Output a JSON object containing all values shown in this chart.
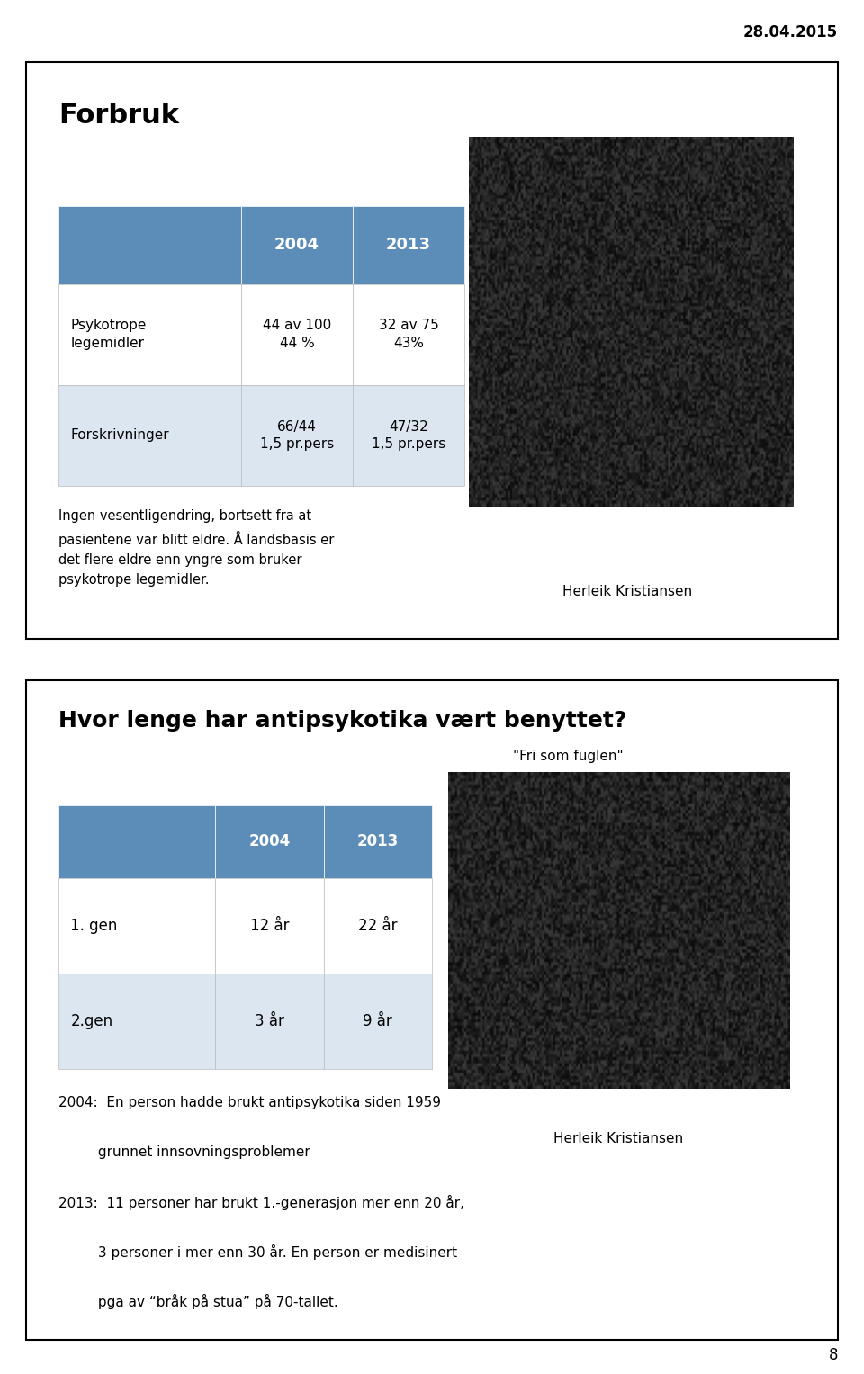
{
  "date_label": "28.04.2015",
  "page_number": "8",
  "bg_color": "#FFFFFF",
  "slide1": {
    "title": "Forbruk",
    "table_header": [
      "",
      "2004",
      "2013"
    ],
    "table_rows": [
      [
        "Psykotrope\nlegemidler",
        "44 av 100\n44 %",
        "32 av 75\n43%"
      ],
      [
        "Forskrivninger",
        "66/44\n1,5 pr.pers",
        "47/32\n1,5 pr.pers"
      ]
    ],
    "header_bg": "#5B8DB8",
    "header_fg": "#FFFFFF",
    "row1_bg": "#FFFFFF",
    "row2_bg": "#DCE6F1",
    "body_text": "Ingen vesentligendring, bortsett fra at\npasientene var blitt eldre. Å landsbasis er\ndet flere eldre enn yngre som bruker\npsykotrope legemidler.",
    "caption": "Herleik Kristiansen"
  },
  "slide2": {
    "title": "Hvor lenge har antipsykotika vært benyttet?",
    "table_header": [
      "",
      "2004",
      "2013"
    ],
    "table_rows": [
      [
        "1. gen",
        "12 år",
        "22 år"
      ],
      [
        "2.gen",
        "3 år",
        "9 år"
      ]
    ],
    "header_bg": "#5B8DB8",
    "header_fg": "#FFFFFF",
    "row1_bg": "#FFFFFF",
    "row2_bg": "#DCE6F1",
    "image_caption_top": "\"Fri som fuglen\"",
    "caption": "Herleik Kristiansen",
    "body_text_lines": [
      "2004:  En person hadde brukt antipsykotika siden 1959",
      "         grunnet innsovningsproblemer",
      "2013:  11 personer har brukt 1.-generasjon mer enn 20 år,",
      "         3 personer i mer enn 30 år. En person er medisinert",
      "         pga av “bråk på stua” på 70-tallet."
    ]
  }
}
